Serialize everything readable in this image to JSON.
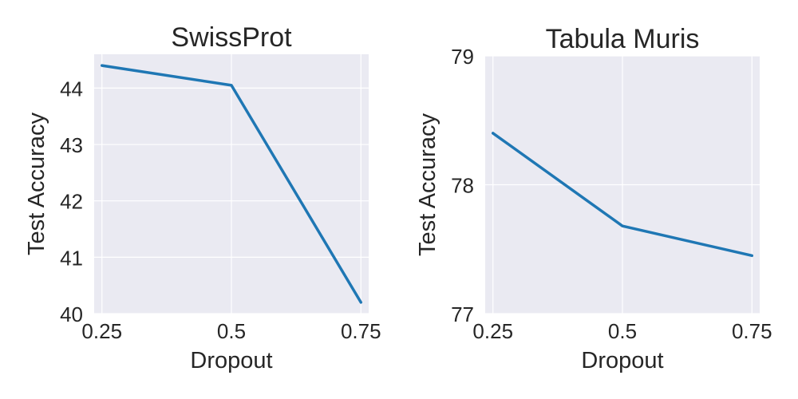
{
  "chart_data": [
    {
      "type": "line",
      "title": "SwissProt",
      "xlabel": "Dropout",
      "ylabel": "Test Accuracy",
      "x": [
        0.25,
        0.5,
        0.75
      ],
      "xticks": [
        0.25,
        0.5,
        0.75
      ],
      "xtick_labels": [
        "0.25",
        "0.5",
        "0.75"
      ],
      "xlim": [
        0.235,
        0.765
      ],
      "yticks": [
        40,
        41,
        42,
        43,
        44
      ],
      "ylim": [
        40.0,
        44.6
      ],
      "grid": true,
      "series": [
        {
          "values": [
            44.4,
            44.05,
            40.2
          ],
          "color": "#1f77b4"
        }
      ]
    },
    {
      "type": "line",
      "title": "Tabula Muris",
      "xlabel": "Dropout",
      "ylabel": "Test Accuracy",
      "x": [
        0.25,
        0.5,
        0.75
      ],
      "xticks": [
        0.25,
        0.5,
        0.75
      ],
      "xtick_labels": [
        "0.25",
        "0.5",
        "0.75"
      ],
      "xlim": [
        0.235,
        0.765
      ],
      "yticks": [
        77,
        78,
        79
      ],
      "ylim": [
        77.0,
        79.0
      ],
      "grid": true,
      "series": [
        {
          "values": [
            78.4,
            77.68,
            77.45
          ],
          "color": "#1f77b4"
        }
      ]
    }
  ]
}
